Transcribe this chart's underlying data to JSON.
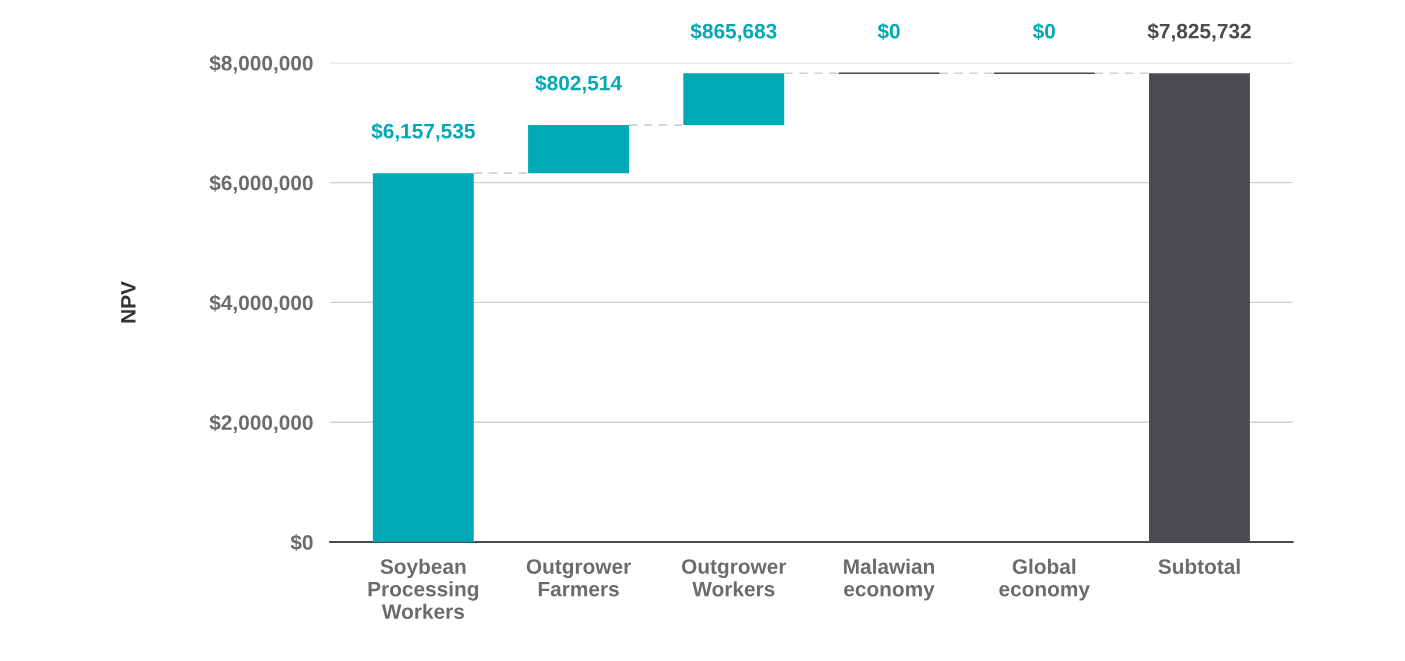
{
  "chart_data": {
    "type": "bar",
    "ylabel": "NPV",
    "categories": [
      "Soybean\nProcessing\nWorkers",
      "Outgrower\nFarmers",
      "Outgrower\nWorkers",
      "Malawian\neconomy",
      "Global\neconomy",
      "Subtotal"
    ],
    "values": [
      6157535,
      802514,
      865683,
      0,
      0,
      7825732
    ],
    "base": [
      0,
      6157535,
      6960049,
      7825732,
      7825732,
      0
    ],
    "colors": [
      "#00a9b5",
      "#00a9b5",
      "#00a9b5",
      "#4a4b4f",
      "#4a4b4f",
      "#4a4b4f"
    ],
    "value_labels": [
      "$6,157,535",
      "$802,514",
      "$865,683",
      "$0",
      "$0",
      "$7,825,732"
    ],
    "ylim": [
      0,
      8000000
    ],
    "yticks": [
      {
        "value": 0,
        "label": "$0"
      },
      {
        "value": 2000000,
        "label": "$2,000,000"
      },
      {
        "value": 4000000,
        "label": "$4,000,000"
      },
      {
        "value": 6000000,
        "label": "$6,000,000"
      },
      {
        "value": 8000000,
        "label": "$8,000,000"
      }
    ],
    "grid": "y",
    "legend": false
  }
}
